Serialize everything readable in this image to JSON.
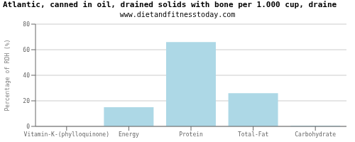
{
  "chart_data": {
    "type": "bar",
    "title": "Atlantic, canned in oil, drained solids with bone per 1.000 cup, draine",
    "subtitle": "www.dietandfitnesstoday.com",
    "categories": [
      "Vitamin-K-(phylloquinone)",
      "Energy",
      "Protein",
      "Total-Fat",
      "Carbohydrate"
    ],
    "values": [
      0,
      15,
      66,
      26,
      0.5
    ],
    "color": "#add8e6",
    "ylabel": "Percentage of RDH (%)",
    "ylim": [
      0,
      80
    ],
    "yticks": [
      0,
      20,
      40,
      60,
      80
    ],
    "grid": true
  }
}
